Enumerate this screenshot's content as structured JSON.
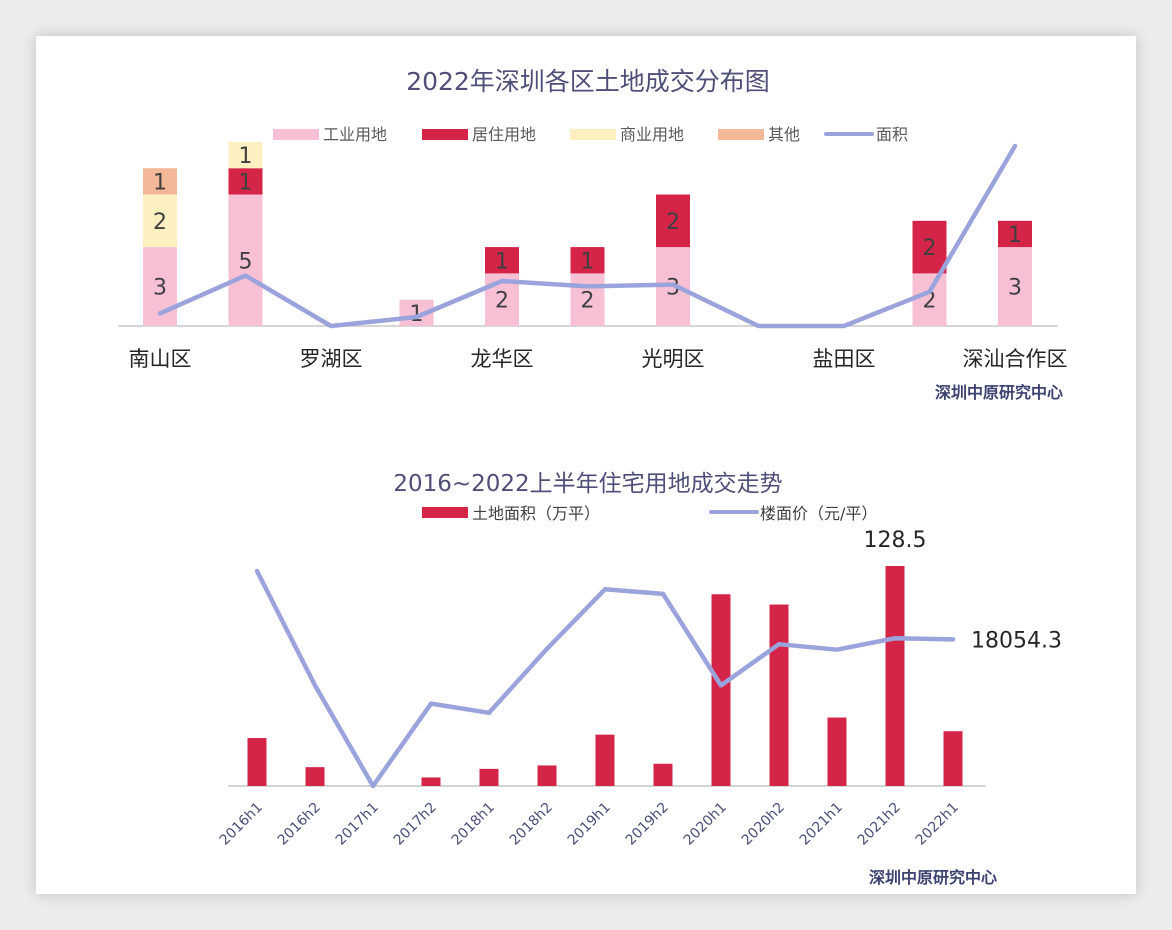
{
  "colors": {
    "industrial": "#f7c0d5",
    "residential": "#d42448",
    "commercial": "#fdf0c0",
    "other": "#f2b897",
    "area_line": "#9aa3dc",
    "bar": "#d42448",
    "title": "#4f4f79",
    "source": "#3d4370"
  },
  "chart_data": [
    {
      "type": "bar",
      "stacked": true,
      "title": "2022年深圳各区土地成交分布图",
      "source": "深圳中原研究中心",
      "categories": [
        "南山区",
        "",
        "罗湖区",
        "",
        "龙华区",
        "",
        "光明区",
        "",
        "盐田区",
        "",
        "深汕合作区"
      ],
      "series": [
        {
          "name": "工业用地",
          "values": [
            3,
            5,
            0,
            1,
            2,
            2,
            3,
            0,
            0,
            2,
            3
          ]
        },
        {
          "name": "居住用地",
          "values": [
            0,
            1,
            0,
            0,
            1,
            1,
            2,
            0,
            0,
            2,
            1
          ]
        },
        {
          "name": "商业用地",
          "values": [
            2,
            1,
            0,
            0,
            0,
            0,
            0,
            0,
            0,
            0,
            0
          ]
        },
        {
          "name": "其他",
          "values": [
            1,
            0,
            0,
            0,
            0,
            0,
            0,
            0,
            0,
            0,
            0
          ]
        }
      ],
      "line": {
        "name": "面积",
        "relative": [
          0.07,
          0.28,
          0.0,
          0.05,
          0.25,
          0.22,
          0.23,
          0.0,
          0.0,
          0.19,
          1.0
        ]
      },
      "legend": "top",
      "ylim": [
        0,
        7
      ]
    },
    {
      "type": "bar",
      "title": "2016~2022上半年住宅用地成交走势",
      "source": "深圳中原研究中心",
      "categories": [
        "2016h1",
        "2016h2",
        "2017h1",
        "2017h2",
        "2018h1",
        "2018h2",
        "2019h1",
        "2019h2",
        "2020h1",
        "2020h2",
        "2021h1",
        "2021h2",
        "2022h1"
      ],
      "series": [
        {
          "name": "土地面积（万平）",
          "values": [
            28,
            11,
            0,
            5,
            10,
            12,
            30,
            13,
            112,
            106,
            40,
            128.5,
            32
          ]
        }
      ],
      "line": {
        "name": "楼面价（元/平）",
        "values": [
          33000,
          8000,
          -14000,
          4000,
          2000,
          16000,
          29000,
          28000,
          8000,
          17000,
          15800,
          18300,
          18054.3
        ]
      },
      "labels": {
        "bar_peak": "128.5",
        "line_last": "18054.3"
      },
      "legend": "top",
      "ylim": [
        0,
        128.5
      ]
    }
  ]
}
